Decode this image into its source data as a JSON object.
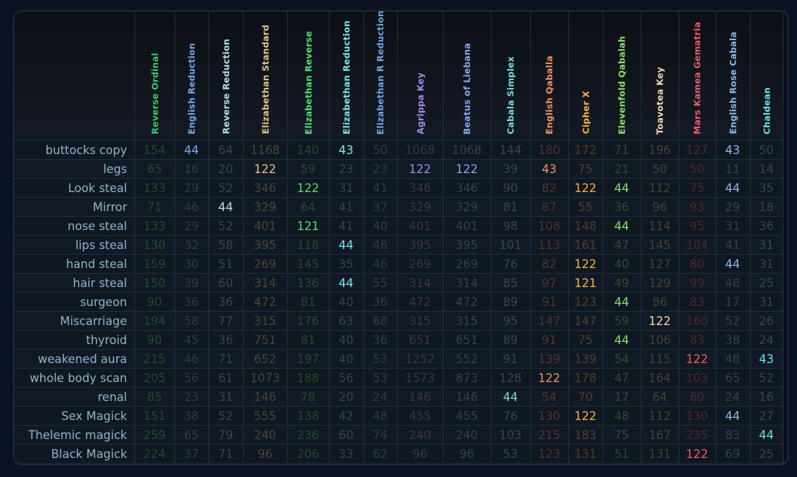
{
  "columns": [
    {
      "name": "Reverse Ordinal",
      "color": "#3fc86a",
      "dim": "#1f4a2f"
    },
    {
      "name": "English Reduction",
      "color": "#7aa5ea",
      "dim": "#2e3a4e"
    },
    {
      "name": "Reverse Reduction",
      "color": "#b3e0ea",
      "dim": "#3a444c"
    },
    {
      "name": "Elizabethan Standard",
      "color": "#e2c48a",
      "dim": "#4a4438"
    },
    {
      "name": "Elizabethan Reverse",
      "color": "#4de07a",
      "dim": "#224a30"
    },
    {
      "name": "Elizabethan Reduction",
      "color": "#7be5e8",
      "dim": "#34444c"
    },
    {
      "name": "Elizabethan R Reduction",
      "color": "#6fa8e8",
      "dim": "#2e3a4e"
    },
    {
      "name": "Agrippa Key",
      "color": "#a38ae8",
      "dim": "#3a3450"
    },
    {
      "name": "Beatus of Liebana",
      "color": "#8aa6ee",
      "dim": "#34404e"
    },
    {
      "name": "Cabala Simplex",
      "color": "#7bdce0",
      "dim": "#364650"
    },
    {
      "name": "English Qaballa",
      "color": "#f2906a",
      "dim": "#4e3432"
    },
    {
      "name": "Cipher X",
      "color": "#f6b24a",
      "dim": "#4e3e2c"
    },
    {
      "name": "Elevenfold Qabalah",
      "color": "#8ae06a",
      "dim": "#344a30"
    },
    {
      "name": "Toavotea Key",
      "color": "#f2d8b0",
      "dim": "#464038"
    },
    {
      "name": "Mars Kamea Gematria",
      "color": "#ef5a6a",
      "dim": "#4a2830"
    },
    {
      "name": "English Rose Cabala",
      "color": "#8ab8ee",
      "dim": "#34404e"
    },
    {
      "name": "Chaldean",
      "color": "#6ae0e8",
      "dim": "#2e4a4e"
    }
  ],
  "rows": [
    {
      "label": "buttocks copy",
      "values": [
        "154",
        "44",
        "64",
        "1168",
        "140",
        "43",
        "50",
        "1068",
        "1068",
        "144",
        "180",
        "172",
        "71",
        "196",
        "127",
        "43",
        "50"
      ]
    },
    {
      "label": "legs",
      "values": [
        "65",
        "16",
        "20",
        "122",
        "59",
        "23",
        "23",
        "122",
        "122",
        "39",
        "43",
        "75",
        "21",
        "50",
        "50",
        "11",
        "14"
      ]
    },
    {
      "label": "Look steal",
      "values": [
        "133",
        "29",
        "52",
        "346",
        "122",
        "31",
        "41",
        "346",
        "346",
        "90",
        "82",
        "122",
        "44",
        "112",
        "75",
        "44",
        "35"
      ]
    },
    {
      "label": "Mirror",
      "values": [
        "71",
        "46",
        "44",
        "329",
        "64",
        "41",
        "37",
        "329",
        "329",
        "81",
        "87",
        "55",
        "36",
        "96",
        "93",
        "29",
        "18"
      ]
    },
    {
      "label": "nose steal",
      "values": [
        "133",
        "29",
        "52",
        "401",
        "121",
        "41",
        "40",
        "401",
        "401",
        "98",
        "108",
        "148",
        "44",
        "114",
        "95",
        "31",
        "36"
      ]
    },
    {
      "label": "lips steal",
      "values": [
        "130",
        "32",
        "58",
        "395",
        "118",
        "44",
        "46",
        "395",
        "395",
        "101",
        "113",
        "161",
        "47",
        "145",
        "104",
        "41",
        "31"
      ]
    },
    {
      "label": "hand steal",
      "values": [
        "159",
        "30",
        "51",
        "269",
        "145",
        "35",
        "46",
        "269",
        "269",
        "76",
        "82",
        "122",
        "40",
        "127",
        "80",
        "44",
        "31"
      ]
    },
    {
      "label": "hair steal",
      "values": [
        "150",
        "39",
        "60",
        "314",
        "136",
        "44",
        "55",
        "314",
        "314",
        "85",
        "97",
        "121",
        "49",
        "129",
        "99",
        "48",
        "25"
      ]
    },
    {
      "label": "surgeon",
      "values": [
        "90",
        "36",
        "36",
        "472",
        "81",
        "40",
        "36",
        "472",
        "472",
        "89",
        "91",
        "123",
        "44",
        "86",
        "83",
        "17",
        "31"
      ]
    },
    {
      "label": "Miscarriage",
      "values": [
        "194",
        "58",
        "77",
        "315",
        "176",
        "63",
        "68",
        "315",
        "315",
        "95",
        "147",
        "147",
        "59",
        "122",
        "160",
        "52",
        "26"
      ]
    },
    {
      "label": "thyroid",
      "values": [
        "90",
        "45",
        "36",
        "751",
        "81",
        "40",
        "36",
        "651",
        "651",
        "89",
        "91",
        "75",
        "44",
        "106",
        "83",
        "38",
        "24"
      ]
    },
    {
      "label": "weakened aura",
      "values": [
        "215",
        "46",
        "71",
        "652",
        "197",
        "40",
        "53",
        "1252",
        "552",
        "91",
        "139",
        "139",
        "54",
        "115",
        "122",
        "48",
        "43"
      ]
    },
    {
      "label": "whole body scan",
      "values": [
        "205",
        "56",
        "61",
        "1073",
        "188",
        "56",
        "53",
        "1573",
        "873",
        "128",
        "122",
        "178",
        "47",
        "164",
        "103",
        "65",
        "52"
      ]
    },
    {
      "label": "renal",
      "values": [
        "85",
        "23",
        "31",
        "146",
        "78",
        "20",
        "24",
        "146",
        "146",
        "44",
        "54",
        "70",
        "17",
        "64",
        "60",
        "24",
        "16"
      ]
    },
    {
      "label": "Sex Magick",
      "values": [
        "151",
        "38",
        "52",
        "555",
        "138",
        "42",
        "48",
        "455",
        "455",
        "76",
        "130",
        "122",
        "48",
        "112",
        "130",
        "44",
        "27"
      ]
    },
    {
      "label": "Thelemic magick",
      "values": [
        "259",
        "65",
        "79",
        "240",
        "236",
        "60",
        "74",
        "240",
        "240",
        "103",
        "215",
        "183",
        "75",
        "167",
        "235",
        "83",
        "44"
      ]
    },
    {
      "label": "Black Magick",
      "values": [
        "224",
        "37",
        "71",
        "96",
        "206",
        "33",
        "62",
        "96",
        "96",
        "53",
        "123",
        "131",
        "51",
        "131",
        "122",
        "69",
        "25"
      ]
    }
  ],
  "highlights": [
    "43",
    "44",
    "121",
    "122"
  ]
}
